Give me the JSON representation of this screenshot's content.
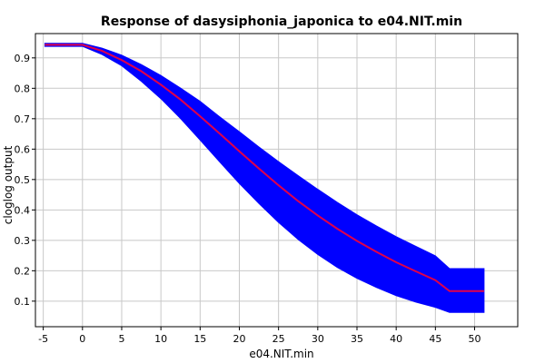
{
  "chart_data": {
    "type": "line",
    "title": "Response of dasysiphonia_japonica to e04.NIT.min",
    "xlabel": "e04.NIT.min",
    "ylabel": "cloglog output",
    "xlim": [
      -6,
      55.5
    ],
    "ylim": [
      0.016,
      0.98
    ],
    "xticks": [
      -5,
      0,
      5,
      10,
      15,
      20,
      25,
      30,
      35,
      40,
      45,
      50
    ],
    "yticks": [
      0.1,
      0.2,
      0.3,
      0.4,
      0.5,
      0.6,
      0.7,
      0.8,
      0.9
    ],
    "grid": true,
    "colors": {
      "band": "#0000ff",
      "line": "#e0004a",
      "grid": "#c8c8c8"
    },
    "series": [
      {
        "role": "mean",
        "x": [
          -4.8,
          0,
          2.5,
          5,
          7.5,
          10,
          12.5,
          15,
          17.5,
          20,
          22.5,
          25,
          27.5,
          30,
          32.5,
          35,
          37.5,
          40,
          42.5,
          45,
          46.8,
          51.2
        ],
        "y": [
          0.943,
          0.943,
          0.923,
          0.893,
          0.856,
          0.812,
          0.763,
          0.708,
          0.651,
          0.593,
          0.536,
          0.481,
          0.429,
          0.382,
          0.338,
          0.298,
          0.262,
          0.228,
          0.198,
          0.169,
          0.133,
          0.133
        ]
      },
      {
        "role": "upper",
        "x": [
          -4.8,
          0,
          2.5,
          5,
          7.5,
          10,
          12.5,
          15,
          17.5,
          20,
          22.5,
          25,
          27.5,
          30,
          32.5,
          35,
          37.5,
          40,
          42.5,
          45,
          46.8,
          51.2
        ],
        "y": [
          0.948,
          0.948,
          0.932,
          0.909,
          0.878,
          0.842,
          0.801,
          0.757,
          0.706,
          0.657,
          0.607,
          0.559,
          0.513,
          0.468,
          0.425,
          0.384,
          0.347,
          0.312,
          0.28,
          0.249,
          0.207,
          0.207
        ]
      },
      {
        "role": "lower",
        "x": [
          -4.8,
          0,
          2.5,
          5,
          7.5,
          10,
          12.5,
          15,
          17.5,
          20,
          22.5,
          25,
          27.5,
          30,
          32.5,
          35,
          37.5,
          40,
          42.5,
          45,
          46.8,
          51.2
        ],
        "y": [
          0.938,
          0.938,
          0.911,
          0.874,
          0.823,
          0.766,
          0.701,
          0.63,
          0.558,
          0.487,
          0.421,
          0.359,
          0.303,
          0.254,
          0.211,
          0.175,
          0.145,
          0.118,
          0.097,
          0.08,
          0.063,
          0.063
        ]
      }
    ]
  }
}
